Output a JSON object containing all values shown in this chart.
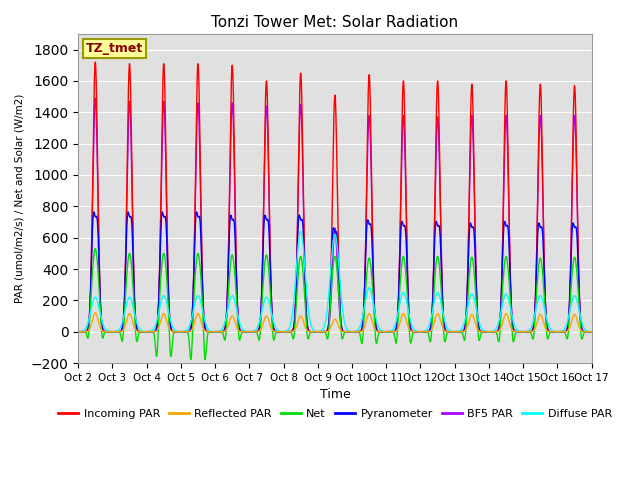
{
  "title": "Tonzi Tower Met: Solar Radiation",
  "xlabel": "Time",
  "ylabel": "PAR (umol/m2/s) / Net and Solar (W/m2)",
  "ylim": [
    -200,
    1900
  ],
  "yticks": [
    -200,
    0,
    200,
    400,
    600,
    800,
    1000,
    1200,
    1400,
    1600,
    1800
  ],
  "xtick_labels": [
    "Oct 2",
    "Oct 3",
    "Oct 4",
    "Oct 5",
    "Oct 6",
    "Oct 7",
    "Oct 8",
    "Oct 9",
    "Oct 10",
    "Oct 11",
    "Oct 12",
    "Oct 13",
    "Oct 14",
    "Oct 15",
    "Oct 16",
    "Oct 17"
  ],
  "legend_label": "TZ_tmet",
  "series": [
    {
      "name": "Incoming PAR",
      "color": "#ff0000"
    },
    {
      "name": "Reflected PAR",
      "color": "#ffa500"
    },
    {
      "name": "Net",
      "color": "#00dd00"
    },
    {
      "name": "Pyranometer",
      "color": "#0000ff"
    },
    {
      "name": "BF5 PAR",
      "color": "#aa00ff"
    },
    {
      "name": "Diffuse PAR",
      "color": "#00ffff"
    }
  ],
  "n_days": 15,
  "peak_incoming_par": [
    1720,
    1710,
    1710,
    1710,
    1700,
    1600,
    1650,
    1510,
    1640,
    1600,
    1600,
    1580,
    1600,
    1580,
    1570
  ],
  "peak_reflected_par": [
    120,
    115,
    115,
    115,
    100,
    100,
    100,
    80,
    115,
    115,
    115,
    110,
    115,
    110,
    110
  ],
  "peak_net": [
    530,
    500,
    500,
    500,
    490,
    490,
    480,
    480,
    470,
    480,
    480,
    475,
    480,
    470,
    475
  ],
  "peak_pyranometer": [
    760,
    760,
    760,
    760,
    740,
    740,
    740,
    660,
    710,
    700,
    700,
    690,
    700,
    690,
    690
  ],
  "peak_bf5par": [
    1490,
    1470,
    1470,
    1460,
    1460,
    1440,
    1450,
    660,
    1380,
    1380,
    1370,
    1380,
    1380,
    1380,
    1380
  ],
  "peak_diffuse_par": [
    220,
    220,
    230,
    230,
    230,
    220,
    640,
    620,
    280,
    250,
    250,
    240,
    240,
    230,
    230
  ],
  "net_negative": [
    -100,
    -120,
    -220,
    -240,
    -110,
    -110,
    -100,
    -100,
    -130,
    -130,
    -120,
    -110,
    -120,
    -100,
    -100
  ],
  "background_color": "#e0e0e0",
  "fig_color": "#ffffff"
}
